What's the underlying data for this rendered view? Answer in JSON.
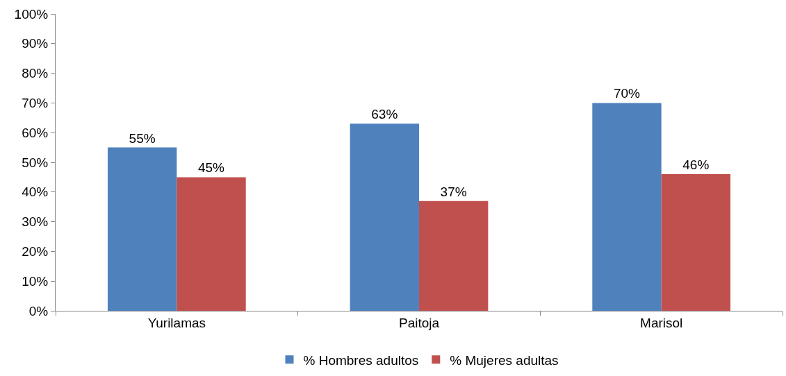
{
  "chart_data": {
    "type": "bar",
    "categories": [
      "Yurilamas",
      "Paitoja",
      "Marisol"
    ],
    "series": [
      {
        "name": "% Hombres adultos",
        "color": "#4f81bd",
        "values": [
          55,
          63,
          70
        ],
        "value_labels": [
          "55%",
          "63%",
          "70%"
        ]
      },
      {
        "name": "% Mujeres adultas",
        "color": "#c0504d",
        "values": [
          45,
          37,
          46
        ],
        "value_labels": [
          "45%",
          "37%",
          "46%"
        ]
      }
    ],
    "ylim": [
      0,
      100
    ],
    "yticks": [
      {
        "value": 0,
        "label": "0%"
      },
      {
        "value": 10,
        "label": "10%"
      },
      {
        "value": 20,
        "label": "20%"
      },
      {
        "value": 30,
        "label": "30%"
      },
      {
        "value": 40,
        "label": "40%"
      },
      {
        "value": 50,
        "label": "50%"
      },
      {
        "value": 60,
        "label": "60%"
      },
      {
        "value": 70,
        "label": "70%"
      },
      {
        "value": 80,
        "label": "80%"
      },
      {
        "value": 90,
        "label": "90%"
      },
      {
        "value": 100,
        "label": "100%"
      }
    ],
    "grid": false,
    "legend": "bottom"
  }
}
